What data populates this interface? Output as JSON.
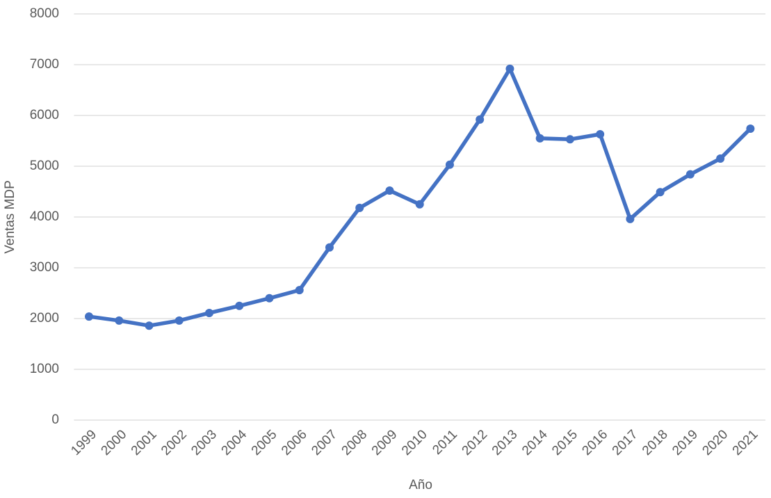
{
  "chart_data": {
    "type": "line",
    "x_label": "Año",
    "y_label": "Ventas MDP",
    "categories": [
      "1999",
      "2000",
      "2001",
      "2002",
      "2003",
      "2004",
      "2005",
      "2006",
      "2007",
      "2008",
      "2009",
      "2010",
      "2011",
      "2012",
      "2013",
      "2014",
      "2015",
      "2016",
      "2017",
      "2018",
      "2019",
      "2020",
      "2021"
    ],
    "values": [
      2040,
      1960,
      1860,
      1960,
      2110,
      2250,
      2400,
      2560,
      3400,
      4180,
      4520,
      4250,
      5030,
      5920,
      6920,
      5550,
      5530,
      5630,
      3960,
      4490,
      4840,
      5150,
      5740
    ],
    "color": "#4472c4",
    "ylim": [
      0,
      8000
    ],
    "yticks": [
      0,
      1000,
      2000,
      3000,
      4000,
      5000,
      6000,
      7000,
      8000
    ],
    "grid": true
  }
}
